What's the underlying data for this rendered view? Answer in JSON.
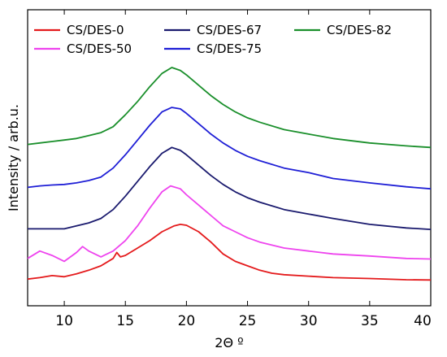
{
  "chart_data": {
    "type": "line",
    "xlabel": "2Θ º",
    "ylabel": "Intensity / arb.u.",
    "xlim": [
      7,
      40
    ],
    "ylim": [
      0,
      100
    ],
    "x_ticks": [
      10,
      15,
      20,
      25,
      30,
      35,
      40
    ],
    "y_ticks": [],
    "grid": false,
    "legend_position": "top",
    "legend_columns": 3,
    "series": [
      {
        "name": "CS/DES-0",
        "color": "#e41a1c",
        "points": [
          [
            7,
            9.0
          ],
          [
            8,
            9.5
          ],
          [
            9,
            10.2
          ],
          [
            10,
            9.8
          ],
          [
            11,
            10.8
          ],
          [
            12,
            12.0
          ],
          [
            13,
            13.5
          ],
          [
            14,
            16.0
          ],
          [
            14.3,
            18.0
          ],
          [
            14.6,
            16.5
          ],
          [
            15,
            17.0
          ],
          [
            16,
            19.5
          ],
          [
            17,
            22.0
          ],
          [
            18,
            25.0
          ],
          [
            19,
            27.0
          ],
          [
            19.5,
            27.5
          ],
          [
            20,
            27.2
          ],
          [
            21,
            25.0
          ],
          [
            22,
            21.5
          ],
          [
            23,
            17.5
          ],
          [
            24,
            15.0
          ],
          [
            25,
            13.5
          ],
          [
            26,
            12.0
          ],
          [
            27,
            11.0
          ],
          [
            28,
            10.5
          ],
          [
            30,
            10.0
          ],
          [
            32,
            9.5
          ],
          [
            35,
            9.2
          ],
          [
            38,
            8.8
          ],
          [
            40,
            8.7
          ]
        ]
      },
      {
        "name": "CS/DES-50",
        "color": "#ee44ee",
        "points": [
          [
            7,
            16.0
          ],
          [
            8,
            18.5
          ],
          [
            9,
            17.0
          ],
          [
            10,
            15.0
          ],
          [
            11,
            18.0
          ],
          [
            11.5,
            20.0
          ],
          [
            12,
            18.5
          ],
          [
            13,
            16.5
          ],
          [
            14,
            18.5
          ],
          [
            15,
            22.0
          ],
          [
            16,
            27.0
          ],
          [
            17,
            33.0
          ],
          [
            18,
            38.5
          ],
          [
            18.7,
            40.5
          ],
          [
            19.5,
            39.5
          ],
          [
            20,
            37.5
          ],
          [
            21,
            34.0
          ],
          [
            22,
            30.5
          ],
          [
            23,
            27.0
          ],
          [
            24,
            25.0
          ],
          [
            25,
            23.0
          ],
          [
            26,
            21.5
          ],
          [
            28,
            19.5
          ],
          [
            30,
            18.5
          ],
          [
            32,
            17.5
          ],
          [
            35,
            16.8
          ],
          [
            38,
            16.0
          ],
          [
            40,
            15.8
          ]
        ]
      },
      {
        "name": "CS/DES-67",
        "color": "#1a1a6e",
        "points": [
          [
            7,
            26.0
          ],
          [
            8,
            26.0
          ],
          [
            9,
            26.0
          ],
          [
            10,
            26.0
          ],
          [
            11,
            27.0
          ],
          [
            12,
            28.0
          ],
          [
            13,
            29.5
          ],
          [
            14,
            32.5
          ],
          [
            15,
            37.0
          ],
          [
            16,
            42.0
          ],
          [
            17,
            47.0
          ],
          [
            18,
            51.5
          ],
          [
            18.8,
            53.5
          ],
          [
            19.5,
            52.5
          ],
          [
            20,
            51.0
          ],
          [
            21,
            47.5
          ],
          [
            22,
            44.0
          ],
          [
            23,
            41.0
          ],
          [
            24,
            38.5
          ],
          [
            25,
            36.5
          ],
          [
            26,
            35.0
          ],
          [
            28,
            32.5
          ],
          [
            30,
            31.0
          ],
          [
            32,
            29.5
          ],
          [
            35,
            27.5
          ],
          [
            38,
            26.3
          ],
          [
            40,
            25.8
          ]
        ]
      },
      {
        "name": "CS/DES-75",
        "color": "#1f1fd6",
        "points": [
          [
            7,
            40.0
          ],
          [
            8,
            40.5
          ],
          [
            9,
            40.8
          ],
          [
            10,
            41.0
          ],
          [
            11,
            41.5
          ],
          [
            12,
            42.3
          ],
          [
            13,
            43.5
          ],
          [
            14,
            46.5
          ],
          [
            15,
            51.0
          ],
          [
            16,
            56.0
          ],
          [
            17,
            61.0
          ],
          [
            18,
            65.5
          ],
          [
            18.8,
            67.0
          ],
          [
            19.5,
            66.5
          ],
          [
            20,
            65.0
          ],
          [
            21,
            61.5
          ],
          [
            22,
            58.0
          ],
          [
            23,
            55.0
          ],
          [
            24,
            52.5
          ],
          [
            25,
            50.5
          ],
          [
            26,
            49.0
          ],
          [
            28,
            46.5
          ],
          [
            30,
            45.0
          ],
          [
            32,
            43.0
          ],
          [
            35,
            41.5
          ],
          [
            38,
            40.2
          ],
          [
            40,
            39.5
          ]
        ]
      },
      {
        "name": "CS/DES-82",
        "color": "#1a8f2b",
        "points": [
          [
            7,
            54.5
          ],
          [
            8,
            55.0
          ],
          [
            9,
            55.5
          ],
          [
            10,
            56.0
          ],
          [
            11,
            56.5
          ],
          [
            12,
            57.5
          ],
          [
            13,
            58.5
          ],
          [
            14,
            60.5
          ],
          [
            15,
            64.5
          ],
          [
            16,
            69.0
          ],
          [
            17,
            74.0
          ],
          [
            18,
            78.5
          ],
          [
            18.8,
            80.5
          ],
          [
            19.5,
            79.5
          ],
          [
            20,
            78.0
          ],
          [
            21,
            74.5
          ],
          [
            22,
            71.0
          ],
          [
            23,
            68.0
          ],
          [
            24,
            65.5
          ],
          [
            25,
            63.5
          ],
          [
            26,
            62.0
          ],
          [
            28,
            59.5
          ],
          [
            30,
            58.0
          ],
          [
            32,
            56.5
          ],
          [
            35,
            55.0
          ],
          [
            38,
            54.0
          ],
          [
            40,
            53.5
          ]
        ]
      }
    ]
  }
}
